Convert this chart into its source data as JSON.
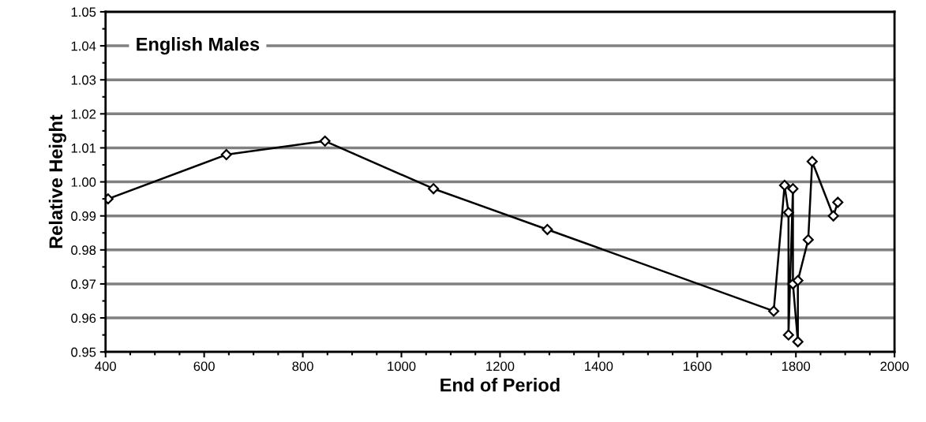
{
  "chart_data": {
    "type": "line",
    "title": "English Males",
    "xlabel": "End of Period",
    "ylabel": "Relative Height",
    "x": [
      405,
      645,
      845,
      1065,
      1296,
      1755,
      1777,
      1785,
      1785,
      1794,
      1794,
      1804,
      1804,
      1825,
      1833,
      1876,
      1885
    ],
    "series": [
      {
        "color": "#000000",
        "values": [
          0.995,
          1.008,
          1.012,
          0.998,
          0.986,
          0.962,
          0.999,
          0.991,
          0.955,
          0.998,
          0.97,
          0.953,
          0.971,
          0.983,
          1.006,
          0.99,
          0.994
        ]
      }
    ],
    "xlim": [
      400,
      2000
    ],
    "xticks": [
      400,
      600,
      800,
      1000,
      1200,
      1400,
      1600,
      1800,
      2000
    ],
    "ylim": [
      0.95,
      1.05
    ],
    "yticks": [
      {
        "value": 0.95,
        "label": "0.95"
      },
      {
        "value": 0.96,
        "label": "0.96"
      },
      {
        "value": 0.97,
        "label": "0.97"
      },
      {
        "value": 0.98,
        "label": "0.98"
      },
      {
        "value": 0.99,
        "label": "0.99"
      },
      {
        "value": 1.0,
        "label": "1.00"
      },
      {
        "value": 1.01,
        "label": "1.01"
      },
      {
        "value": 1.02,
        "label": "1.02"
      },
      {
        "value": 1.03,
        "label": "1.03"
      },
      {
        "value": 1.04,
        "label": "1.04"
      },
      {
        "value": 1.05,
        "label": "1.05"
      }
    ],
    "grid": "y",
    "marker": "diamond",
    "line_style": "solid"
  }
}
